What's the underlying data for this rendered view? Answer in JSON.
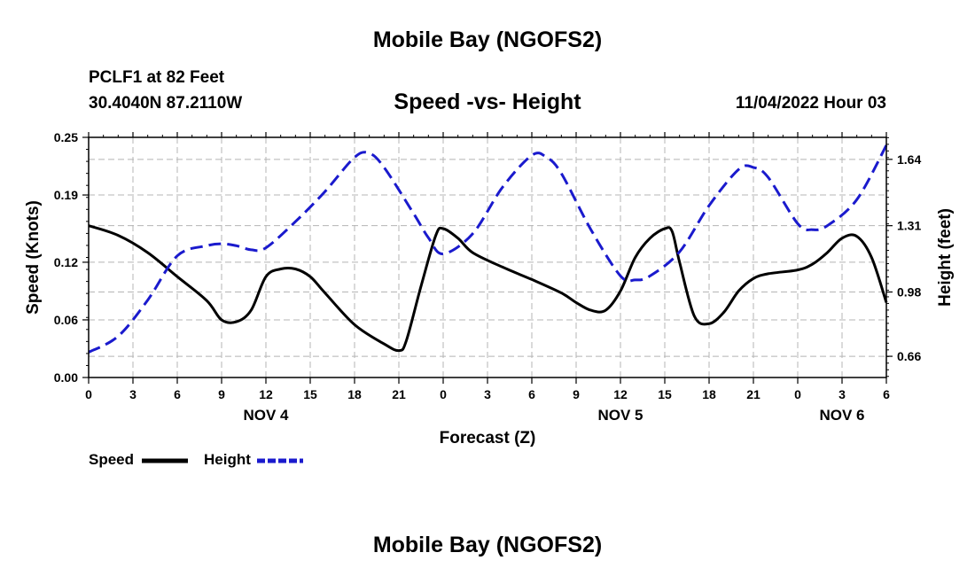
{
  "main_title": "Mobile Bay (NGOFS2)",
  "footer_title": "Mobile Bay (NGOFS2)",
  "station": {
    "name": "PCLF1 at 82 Feet",
    "coordinates": "30.4040N  87.2110W"
  },
  "plot_title": "Speed -vs- Height",
  "datetime": "11/04/2022 Hour 03",
  "legend": {
    "speed_label": "Speed",
    "height_label": "Height"
  },
  "colors": {
    "speed": "#000000",
    "height": "#1a1acd",
    "grid": "#b4b4b4"
  },
  "chart_data": {
    "type": "line",
    "title": "Speed -vs- Height",
    "xlabel": "Forecast (Z)",
    "ylabel_left": "Speed (Knots)",
    "ylabel_right": "Height (feet)",
    "x_hours_range": [
      0,
      54
    ],
    "x_tick_labels": [
      "0",
      "3",
      "6",
      "9",
      "12",
      "15",
      "18",
      "21",
      "0",
      "3",
      "6",
      "9",
      "12",
      "15",
      "18",
      "21",
      "0",
      "3",
      "6"
    ],
    "day_labels": [
      {
        "label": "NOV 4",
        "hour": 12
      },
      {
        "label": "NOV 5",
        "hour": 36
      },
      {
        "label": "NOV 6",
        "hour": 51
      }
    ],
    "y_left": {
      "range": [
        0,
        0.25
      ],
      "ticks": [
        0.0,
        0.06,
        0.12,
        0.19,
        0.25
      ],
      "tick_labels": [
        "0.00",
        "0.06",
        "0.12",
        "0.19",
        "0.25"
      ]
    },
    "y_right": {
      "range": [
        0.5545,
        1.7495
      ],
      "ticks": [
        0.66,
        0.98,
        1.31,
        1.64
      ],
      "tick_labels": [
        "0.66",
        "0.98",
        "1.31",
        "1.64"
      ]
    },
    "series": [
      {
        "name": "Speed",
        "axis": "left",
        "style": "solid",
        "x": [
          0,
          2,
          4,
          6,
          8,
          9,
          10,
          11,
          12,
          13,
          14,
          15,
          16,
          18,
          20,
          21,
          21.5,
          22.5,
          23.5,
          24,
          25,
          26,
          28,
          30,
          32,
          33,
          34,
          35,
          36,
          37,
          38,
          39,
          39.5,
          40,
          41,
          42,
          43,
          44,
          45,
          46,
          48,
          49,
          50,
          51,
          52,
          53,
          54
        ],
        "values": [
          0.158,
          0.148,
          0.13,
          0.105,
          0.08,
          0.06,
          0.058,
          0.07,
          0.105,
          0.113,
          0.113,
          0.105,
          0.088,
          0.055,
          0.035,
          0.028,
          0.038,
          0.095,
          0.148,
          0.155,
          0.145,
          0.13,
          0.115,
          0.102,
          0.088,
          0.078,
          0.07,
          0.07,
          0.09,
          0.125,
          0.145,
          0.155,
          0.152,
          0.12,
          0.064,
          0.056,
          0.068,
          0.09,
          0.103,
          0.108,
          0.112,
          0.118,
          0.13,
          0.145,
          0.147,
          0.125,
          0.078
        ]
      },
      {
        "name": "Height",
        "axis": "right",
        "style": "dashed",
        "x": [
          0,
          2,
          4,
          6,
          8,
          9,
          10,
          11,
          12,
          14,
          16,
          18,
          19,
          20,
          22,
          23,
          24,
          26,
          28,
          30,
          31,
          32,
          34,
          36,
          37,
          38,
          40,
          42,
          44,
          45,
          46,
          48,
          49,
          50,
          52,
          54
        ],
        "values": [
          0.68,
          0.76,
          0.94,
          1.16,
          1.21,
          1.22,
          1.21,
          1.19,
          1.2,
          1.33,
          1.48,
          1.65,
          1.67,
          1.6,
          1.37,
          1.25,
          1.17,
          1.27,
          1.5,
          1.66,
          1.65,
          1.57,
          1.29,
          1.06,
          1.04,
          1.06,
          1.18,
          1.41,
          1.59,
          1.6,
          1.55,
          1.32,
          1.29,
          1.31,
          1.44,
          1.71
        ]
      }
    ]
  }
}
